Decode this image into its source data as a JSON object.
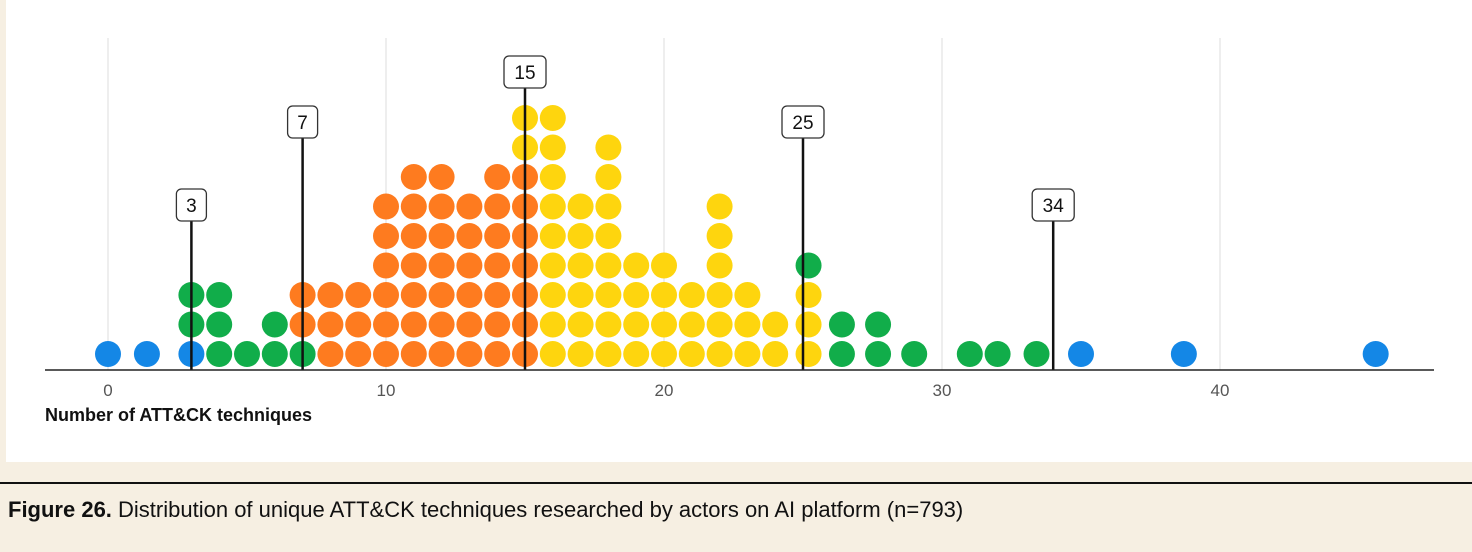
{
  "chart_data": {
    "type": "scatter",
    "title": "",
    "xlabel": "Number of ATT&CK techniques",
    "xlim": [
      -2.3,
      47.5
    ],
    "xticks": [
      0,
      10,
      20,
      30,
      40
    ],
    "grid": true,
    "colors": {
      "blue": "#1487e6",
      "green": "#11ad4a",
      "orange": "#fe7b1f",
      "yellow": "#fed50e"
    },
    "markers": [
      {
        "value": 3,
        "label": "3"
      },
      {
        "value": 7,
        "label": "7"
      },
      {
        "value": 15,
        "label": "15"
      },
      {
        "value": 25,
        "label": "25"
      },
      {
        "value": 34,
        "label": "34"
      }
    ],
    "series": [
      {
        "color": "blue",
        "points": [
          [
            0,
            1
          ],
          [
            1.4,
            1
          ],
          [
            3,
            1
          ],
          [
            35,
            1
          ],
          [
            38.7,
            1
          ],
          [
            45.6,
            1
          ]
        ]
      },
      {
        "color": "green",
        "points": [
          [
            3,
            2
          ],
          [
            3,
            3
          ],
          [
            4,
            1
          ],
          [
            4,
            2
          ],
          [
            4,
            3
          ],
          [
            5,
            1
          ],
          [
            6,
            1
          ],
          [
            6,
            2
          ],
          [
            7,
            1
          ],
          [
            25.2,
            4
          ],
          [
            26.4,
            1
          ],
          [
            26.4,
            2
          ],
          [
            27.7,
            1
          ],
          [
            27.7,
            2
          ],
          [
            29,
            1
          ],
          [
            31,
            1
          ],
          [
            32,
            1
          ],
          [
            33.4,
            1
          ]
        ]
      },
      {
        "color": "orange",
        "points": [
          [
            7,
            2
          ],
          [
            7,
            3
          ],
          [
            8,
            1
          ],
          [
            8,
            2
          ],
          [
            8,
            3
          ],
          [
            9,
            1
          ],
          [
            9,
            2
          ],
          [
            9,
            3
          ],
          [
            10,
            1
          ],
          [
            10,
            2
          ],
          [
            10,
            3
          ],
          [
            10,
            4
          ],
          [
            10,
            5
          ],
          [
            10,
            6
          ],
          [
            11,
            1
          ],
          [
            11,
            2
          ],
          [
            11,
            3
          ],
          [
            11,
            4
          ],
          [
            11,
            5
          ],
          [
            11,
            6
          ],
          [
            11,
            7
          ],
          [
            12,
            1
          ],
          [
            12,
            2
          ],
          [
            12,
            3
          ],
          [
            12,
            4
          ],
          [
            12,
            5
          ],
          [
            12,
            6
          ],
          [
            12,
            7
          ],
          [
            13,
            1
          ],
          [
            13,
            2
          ],
          [
            13,
            3
          ],
          [
            13,
            4
          ],
          [
            13,
            5
          ],
          [
            13,
            6
          ],
          [
            14,
            1
          ],
          [
            14,
            2
          ],
          [
            14,
            3
          ],
          [
            14,
            4
          ],
          [
            14,
            5
          ],
          [
            14,
            6
          ],
          [
            14,
            7
          ],
          [
            15,
            1
          ],
          [
            15,
            2
          ],
          [
            15,
            3
          ],
          [
            15,
            4
          ],
          [
            15,
            5
          ],
          [
            15,
            6
          ],
          [
            15,
            7
          ]
        ]
      },
      {
        "color": "yellow",
        "points": [
          [
            15,
            8
          ],
          [
            15,
            9
          ],
          [
            16,
            1
          ],
          [
            16,
            2
          ],
          [
            16,
            3
          ],
          [
            16,
            4
          ],
          [
            16,
            5
          ],
          [
            16,
            6
          ],
          [
            16,
            7
          ],
          [
            16,
            8
          ],
          [
            16,
            9
          ],
          [
            17,
            1
          ],
          [
            17,
            2
          ],
          [
            17,
            3
          ],
          [
            17,
            4
          ],
          [
            17,
            5
          ],
          [
            17,
            6
          ],
          [
            18,
            1
          ],
          [
            18,
            2
          ],
          [
            18,
            3
          ],
          [
            18,
            4
          ],
          [
            18,
            5
          ],
          [
            18,
            6
          ],
          [
            18,
            7
          ],
          [
            18,
            8
          ],
          [
            19,
            1
          ],
          [
            19,
            2
          ],
          [
            19,
            3
          ],
          [
            19,
            4
          ],
          [
            20,
            1
          ],
          [
            20,
            2
          ],
          [
            20,
            3
          ],
          [
            20,
            4
          ],
          [
            21,
            1
          ],
          [
            21,
            2
          ],
          [
            21,
            3
          ],
          [
            22,
            1
          ],
          [
            22,
            2
          ],
          [
            22,
            3
          ],
          [
            22,
            4
          ],
          [
            22,
            5
          ],
          [
            22,
            6
          ],
          [
            23,
            1
          ],
          [
            23,
            2
          ],
          [
            23,
            3
          ],
          [
            24,
            1
          ],
          [
            24,
            2
          ],
          [
            25.2,
            1
          ],
          [
            25.2,
            2
          ],
          [
            25.2,
            3
          ]
        ]
      }
    ]
  },
  "caption": {
    "prefix": "Figure 26.",
    "text": " Distribution of unique ATT&CK techniques researched by actors on AI platform (n=793)"
  }
}
